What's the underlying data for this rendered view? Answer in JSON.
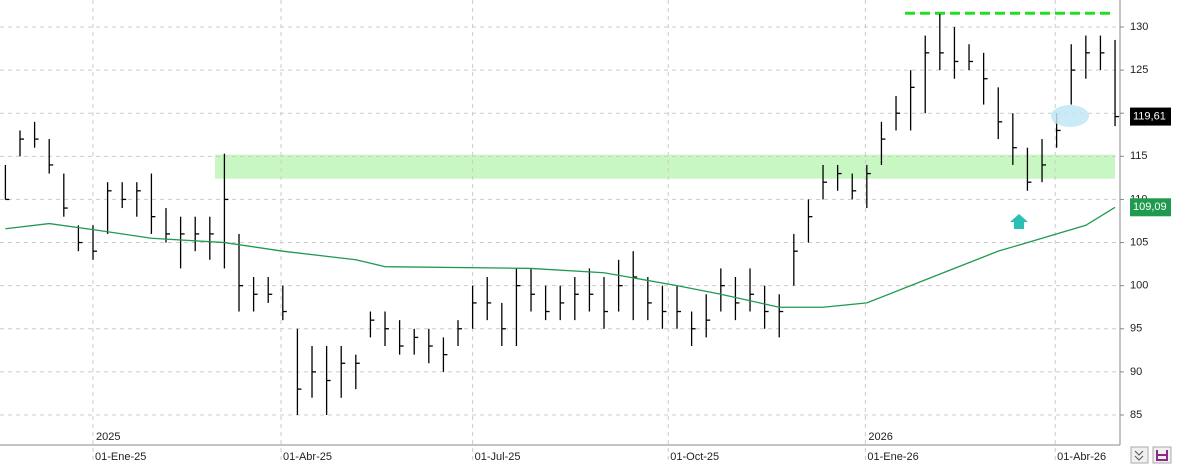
{
  "chart_data": {
    "type": "ohlc",
    "price": {
      "x": [
        -6,
        -5,
        -4,
        -3,
        -2,
        -1,
        0,
        1,
        2,
        3,
        4,
        5,
        6,
        7,
        8,
        9,
        10,
        11,
        12,
        13,
        14,
        15,
        16,
        17,
        18,
        19,
        20,
        21,
        22,
        23,
        24,
        25,
        26,
        27,
        28,
        29,
        30,
        31,
        32,
        33,
        34,
        35,
        36,
        37,
        38,
        39,
        40,
        41,
        42,
        43,
        44,
        45,
        46,
        47,
        48,
        49,
        50,
        51,
        52,
        53,
        54,
        55,
        56,
        57,
        58,
        59,
        60,
        61,
        62,
        63,
        64,
        65,
        66,
        67,
        68,
        69,
        70
      ],
      "high": [
        114,
        118,
        119,
        117,
        113,
        107,
        107,
        112,
        112,
        112,
        113,
        109,
        108,
        108,
        108,
        115.3,
        106,
        101,
        101,
        100,
        95,
        93,
        93,
        93,
        92,
        97,
        97,
        96,
        95,
        95,
        94,
        96,
        100,
        101,
        98,
        102,
        102,
        100,
        100,
        101,
        102,
        101,
        103,
        104,
        101,
        100,
        100,
        97,
        99,
        102,
        101,
        102,
        100,
        99,
        106,
        110,
        114,
        114,
        113,
        114,
        119,
        122,
        125,
        129,
        131.5,
        130,
        128,
        127,
        123,
        120,
        116,
        117,
        120,
        128,
        129,
        129,
        128.5
      ],
      "low": [
        110,
        115,
        116,
        113,
        108,
        104,
        103,
        106,
        109,
        108,
        106,
        105,
        102,
        104,
        103,
        102,
        97,
        97,
        98,
        96,
        85,
        87,
        85,
        87,
        88,
        94,
        93,
        92,
        92,
        91,
        90,
        93,
        95,
        96,
        93,
        93,
        97,
        96,
        96,
        96,
        97,
        95,
        97,
        96,
        96,
        95,
        95,
        93,
        94,
        97,
        96,
        97,
        95,
        94,
        100,
        105,
        110,
        111,
        110,
        109,
        114,
        118,
        118,
        120,
        125,
        124,
        125,
        121,
        117,
        114,
        111,
        112,
        116,
        121,
        124,
        125,
        118.5
      ],
      "close": [
        110,
        117,
        117,
        114,
        109,
        105,
        104,
        111,
        110,
        111,
        108,
        106,
        106,
        106,
        106,
        110,
        100,
        99,
        99,
        97,
        88,
        90,
        89,
        91,
        91,
        96,
        95,
        93,
        94,
        93,
        92,
        95,
        98,
        98,
        95,
        100,
        99,
        97,
        98,
        99,
        99,
        97,
        100,
        101,
        98,
        97,
        97,
        95,
        96,
        100,
        98,
        99,
        97,
        97,
        104,
        108,
        112,
        113,
        111,
        113,
        117,
        120,
        123,
        127,
        127,
        126,
        126,
        124,
        119,
        116,
        112,
        114,
        118,
        125,
        127,
        127,
        119.61
      ],
      "close_label": "119,61",
      "color": "#000000"
    },
    "moving_average": {
      "x": [
        -6,
        -3,
        0,
        4,
        9,
        13,
        18,
        20,
        30,
        35,
        40,
        43,
        47,
        50,
        53,
        56,
        59,
        62,
        65,
        68,
        70
      ],
      "values": [
        106.6,
        107.2,
        106.5,
        105.5,
        105,
        104,
        103,
        102.2,
        102,
        101.5,
        100,
        99,
        97.5,
        97.5,
        98,
        100,
        102,
        104,
        105.5,
        107,
        109.09
      ],
      "value_label": "109,09",
      "color": "#1f9a4e"
    },
    "resistance": 131.6,
    "zone": [
      112.4,
      115.2
    ],
    "xlim": [
      -6.37,
      70.34
    ],
    "ylim": [
      81.52,
      133.13
    ],
    "xticks": [
      {
        "value": 0,
        "label": "01-Ene-25"
      },
      {
        "value": 12.88,
        "label": "01-Abr-25"
      },
      {
        "value": 26.0,
        "label": "01-Jul-25"
      },
      {
        "value": 39.4,
        "label": "01-Oct-25"
      },
      {
        "value": 52.9,
        "label": "01-Ene-26"
      },
      {
        "value": 65.9,
        "label": "01-Abr-26"
      }
    ],
    "year_labels": [
      {
        "value": 0,
        "label": "2025"
      },
      {
        "value": 52.9,
        "label": "2026"
      }
    ],
    "yticks": [
      85,
      90,
      95,
      100,
      105,
      110,
      115,
      120,
      125,
      130
    ],
    "grid": true
  }
}
